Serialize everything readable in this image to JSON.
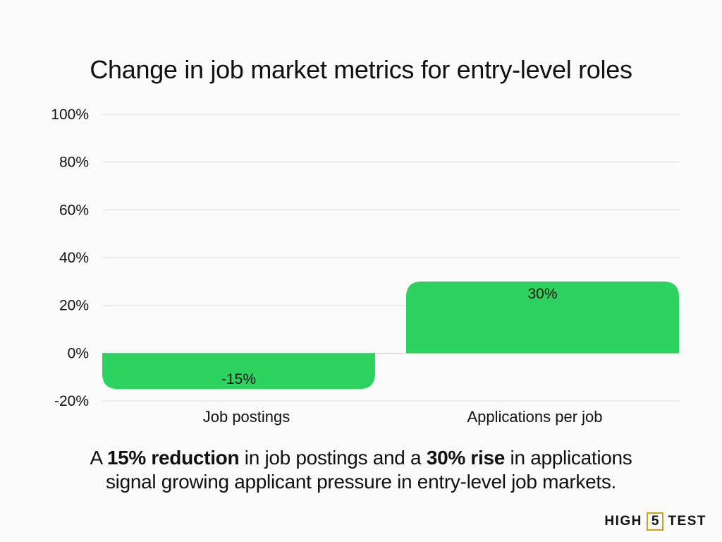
{
  "chart_data": {
    "type": "bar",
    "title": "Change in job market metrics for entry-level roles",
    "categories": [
      "Job postings",
      "Applications per job"
    ],
    "values": [
      -15,
      30
    ],
    "data_labels": [
      "-15%",
      "30%"
    ],
    "ylim": [
      -20,
      100
    ],
    "yticks": [
      100,
      80,
      60,
      40,
      20,
      0,
      -20
    ],
    "ytick_labels": [
      "100%",
      "80%",
      "60%",
      "40%",
      "20%",
      "0%",
      "-20%"
    ],
    "xlabel": "",
    "ylabel": "",
    "grid": true,
    "bar_color": "#2ed35f",
    "grid_color": "#dddddd"
  },
  "caption": {
    "p1": "A ",
    "b1": "15% reduction",
    "p2": " in job postings and a ",
    "b2": "30% rise",
    "p3": " in applications",
    "line2": "signal growing applicant pressure in entry-level job markets."
  },
  "logo": {
    "left": "HIGH",
    "mid": "5",
    "right": "TEST"
  }
}
